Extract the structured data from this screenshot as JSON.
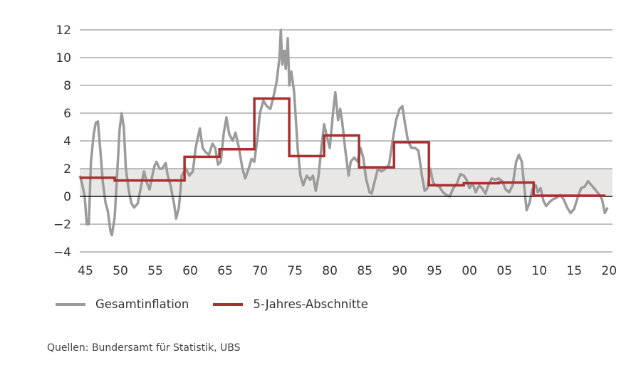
{
  "chart_data": {
    "type": "line",
    "title": "",
    "xlabel": "",
    "ylabel": "",
    "xlim": [
      1945,
      2021.3
    ],
    "ylim": [
      -4,
      12
    ],
    "x_ticks": [
      1945,
      1950,
      1955,
      1960,
      1965,
      1970,
      1975,
      1980,
      1985,
      1990,
      1995,
      2000,
      2005,
      2010,
      2015,
      2020
    ],
    "x_tick_labels": [
      "45",
      "50",
      "55",
      "60",
      "65",
      "70",
      "75",
      "80",
      "85",
      "90",
      "95",
      "00",
      "05",
      "10",
      "15",
      "20"
    ],
    "y_ticks": [
      -4,
      -2,
      0,
      2,
      4,
      6,
      8,
      10,
      12
    ],
    "y_tick_labels": [
      "−4",
      "−2",
      "0",
      "2",
      "4",
      "6",
      "8",
      "10",
      "12"
    ],
    "grid": "horizontal",
    "shaded_band": [
      0,
      2
    ],
    "colors": {
      "inflation": "#9b9b9b",
      "steps": "#a8302e",
      "band": "#e8e7e6",
      "zero_line": "#111111",
      "grid": "#9a9a9a"
    },
    "legend": {
      "placement": "bottom-left"
    },
    "series": [
      {
        "name": "Gesamtinflation",
        "points": [
          [
            1945,
            1.5
          ],
          [
            1945.3,
            1.0
          ],
          [
            1945.7,
            0
          ],
          [
            1946,
            -2
          ],
          [
            1946.3,
            -2
          ],
          [
            1946.6,
            2.5
          ],
          [
            1947,
            4.5
          ],
          [
            1947.3,
            5.3
          ],
          [
            1947.6,
            5.4
          ],
          [
            1948,
            3
          ],
          [
            1948.3,
            1
          ],
          [
            1948.7,
            -0.5
          ],
          [
            1949,
            -1
          ],
          [
            1949.4,
            -2.5
          ],
          [
            1949.6,
            -2.8
          ],
          [
            1950,
            -1.5
          ],
          [
            1950.4,
            2
          ],
          [
            1950.7,
            4.8
          ],
          [
            1951,
            6.0
          ],
          [
            1951.3,
            5.0
          ],
          [
            1951.6,
            2
          ],
          [
            1952,
            0.5
          ],
          [
            1952.4,
            -0.5
          ],
          [
            1952.8,
            -0.8
          ],
          [
            1953.3,
            -0.5
          ],
          [
            1953.8,
            0.8
          ],
          [
            1954.2,
            1.8
          ],
          [
            1954.6,
            1.0
          ],
          [
            1955,
            0.5
          ],
          [
            1955.3,
            1.3
          ],
          [
            1955.7,
            2.2
          ],
          [
            1956,
            2.5
          ],
          [
            1956.4,
            2.0
          ],
          [
            1956.8,
            2.0
          ],
          [
            1957.3,
            2.4
          ],
          [
            1957.6,
            1.5
          ],
          [
            1958,
            0.8
          ],
          [
            1958.5,
            -0.5
          ],
          [
            1958.8,
            -1.6
          ],
          [
            1959.2,
            -0.8
          ],
          [
            1959.6,
            1.5
          ],
          [
            1960.2,
            2
          ],
          [
            1960.7,
            1.5
          ],
          [
            1961.2,
            1.8
          ],
          [
            1961.6,
            3.5
          ],
          [
            1962.2,
            4.9
          ],
          [
            1962.6,
            3.5
          ],
          [
            1963,
            3.2
          ],
          [
            1963.5,
            3.0
          ],
          [
            1964,
            3.8
          ],
          [
            1964.4,
            3.5
          ],
          [
            1964.8,
            2.3
          ],
          [
            1965.2,
            2.5
          ],
          [
            1965.6,
            4.5
          ],
          [
            1966,
            5.7
          ],
          [
            1966.4,
            4.5
          ],
          [
            1966.9,
            4.0
          ],
          [
            1967.3,
            4.6
          ],
          [
            1967.8,
            3.5
          ],
          [
            1968.3,
            2.0
          ],
          [
            1968.7,
            1.3
          ],
          [
            1969.2,
            2.0
          ],
          [
            1969.6,
            2.7
          ],
          [
            1970,
            2.5
          ],
          [
            1970.4,
            4.0
          ],
          [
            1970.8,
            6.0
          ],
          [
            1971.3,
            6.9
          ],
          [
            1971.8,
            6.5
          ],
          [
            1972.3,
            6.3
          ],
          [
            1972.8,
            7.3
          ],
          [
            1973.2,
            8.3
          ],
          [
            1973.6,
            10
          ],
          [
            1973.8,
            12
          ],
          [
            1974,
            9.5
          ],
          [
            1974.3,
            10.5
          ],
          [
            1974.5,
            9.2
          ],
          [
            1974.8,
            11.4
          ],
          [
            1975,
            8.0
          ],
          [
            1975.3,
            9.0
          ],
          [
            1975.7,
            7.5
          ],
          [
            1976.2,
            3.5
          ],
          [
            1976.6,
            1.5
          ],
          [
            1977,
            0.8
          ],
          [
            1977.5,
            1.5
          ],
          [
            1978,
            1.2
          ],
          [
            1978.4,
            1.5
          ],
          [
            1978.8,
            0.4
          ],
          [
            1979.2,
            1.5
          ],
          [
            1979.6,
            3.5
          ],
          [
            1980,
            5.2
          ],
          [
            1980.4,
            4.3
          ],
          [
            1980.8,
            3.5
          ],
          [
            1981.3,
            6.2
          ],
          [
            1981.6,
            7.5
          ],
          [
            1982,
            5.5
          ],
          [
            1982.3,
            6.3
          ],
          [
            1982.6,
            5.3
          ],
          [
            1983,
            3.5
          ],
          [
            1983.5,
            1.5
          ],
          [
            1983.8,
            2.5
          ],
          [
            1984.3,
            2.8
          ],
          [
            1984.8,
            2.5
          ],
          [
            1985.2,
            3.5
          ],
          [
            1985.6,
            2.8
          ],
          [
            1986,
            1.3
          ],
          [
            1986.5,
            0.3
          ],
          [
            1986.8,
            0.2
          ],
          [
            1987.2,
            1.0
          ],
          [
            1987.7,
            2.0
          ],
          [
            1988.2,
            1.8
          ],
          [
            1988.8,
            2.0
          ],
          [
            1989.3,
            2.3
          ],
          [
            1989.8,
            4.0
          ],
          [
            1990.3,
            5.5
          ],
          [
            1990.8,
            6.3
          ],
          [
            1991.2,
            6.5
          ],
          [
            1991.6,
            5.2
          ],
          [
            1992,
            4.0
          ],
          [
            1992.5,
            3.5
          ],
          [
            1993,
            3.5
          ],
          [
            1993.5,
            3.3
          ],
          [
            1994,
            1.5
          ],
          [
            1994.4,
            0.4
          ],
          [
            1994.8,
            0.6
          ],
          [
            1995.2,
            2.0
          ],
          [
            1995.6,
            1.0
          ],
          [
            1996,
            0.8
          ],
          [
            1996.5,
            0.7
          ],
          [
            1997,
            0.3
          ],
          [
            1997.5,
            0.1
          ],
          [
            1998,
            0.0
          ],
          [
            1998.5,
            0.6
          ],
          [
            1999,
            0.9
          ],
          [
            1999.5,
            1.6
          ],
          [
            2000,
            1.5
          ],
          [
            2000.4,
            1.2
          ],
          [
            2000.8,
            0.6
          ],
          [
            2001.3,
            0.9
          ],
          [
            2001.7,
            0.3
          ],
          [
            2002.2,
            0.8
          ],
          [
            2002.6,
            0.6
          ],
          [
            2003.1,
            0.2
          ],
          [
            2003.5,
            0.8
          ],
          [
            2004,
            1.3
          ],
          [
            2004.5,
            1.2
          ],
          [
            2005,
            1.3
          ],
          [
            2005.5,
            1.1
          ],
          [
            2006,
            0.5
          ],
          [
            2006.5,
            0.3
          ],
          [
            2007,
            0.8
          ],
          [
            2007.5,
            2.5
          ],
          [
            2007.9,
            3.0
          ],
          [
            2008.3,
            2.5
          ],
          [
            2008.7,
            0.5
          ],
          [
            2009,
            -1.0
          ],
          [
            2009.4,
            -0.5
          ],
          [
            2009.8,
            0.5
          ],
          [
            2010.3,
            0.8
          ],
          [
            2010.6,
            0.3
          ],
          [
            2011,
            0.6
          ],
          [
            2011.4,
            -0.3
          ],
          [
            2011.8,
            -0.7
          ],
          [
            2012.3,
            -0.4
          ],
          [
            2012.8,
            -0.2
          ],
          [
            2013.3,
            -0.1
          ],
          [
            2013.8,
            0.1
          ],
          [
            2014.3,
            -0.2
          ],
          [
            2014.8,
            -0.8
          ],
          [
            2015.3,
            -1.2
          ],
          [
            2015.8,
            -0.9
          ],
          [
            2016.3,
            -0.1
          ],
          [
            2016.8,
            0.6
          ],
          [
            2017.3,
            0.7
          ],
          [
            2017.8,
            1.1
          ],
          [
            2018.3,
            0.8
          ],
          [
            2018.8,
            0.5
          ],
          [
            2019.3,
            0.2
          ],
          [
            2019.8,
            -0.2
          ],
          [
            2020.2,
            -1.2
          ],
          [
            2020.6,
            -0.8
          ]
        ]
      },
      {
        "name": "5-Jahres-Abschnitte",
        "step_periods": [
          {
            "start": 1945,
            "end": 1950,
            "value": 1.35
          },
          {
            "start": 1950,
            "end": 1955,
            "value": 1.15
          },
          {
            "start": 1955,
            "end": 1960,
            "value": 1.15
          },
          {
            "start": 1960,
            "end": 1965,
            "value": 2.85
          },
          {
            "start": 1965,
            "end": 1970,
            "value": 3.4
          },
          {
            "start": 1970,
            "end": 1975,
            "value": 7.05
          },
          {
            "start": 1975,
            "end": 1980,
            "value": 2.9
          },
          {
            "start": 1980,
            "end": 1985,
            "value": 4.4
          },
          {
            "start": 1985,
            "end": 1990,
            "value": 2.1
          },
          {
            "start": 1990,
            "end": 1995,
            "value": 3.9
          },
          {
            "start": 1995,
            "end": 2000,
            "value": 0.8
          },
          {
            "start": 2000,
            "end": 2005,
            "value": 0.95
          },
          {
            "start": 2005,
            "end": 2010,
            "value": 1.0
          },
          {
            "start": 2010,
            "end": 2015,
            "value": 0.05
          },
          {
            "start": 2015,
            "end": 2020.3,
            "value": 0.05
          }
        ]
      }
    ]
  },
  "legend": {
    "items": [
      {
        "label": "Gesamtinflation"
      },
      {
        "label": "5-Jahres-Abschnitte"
      }
    ]
  },
  "source": "Quellen: Bundersamt für Statistik, UBS"
}
